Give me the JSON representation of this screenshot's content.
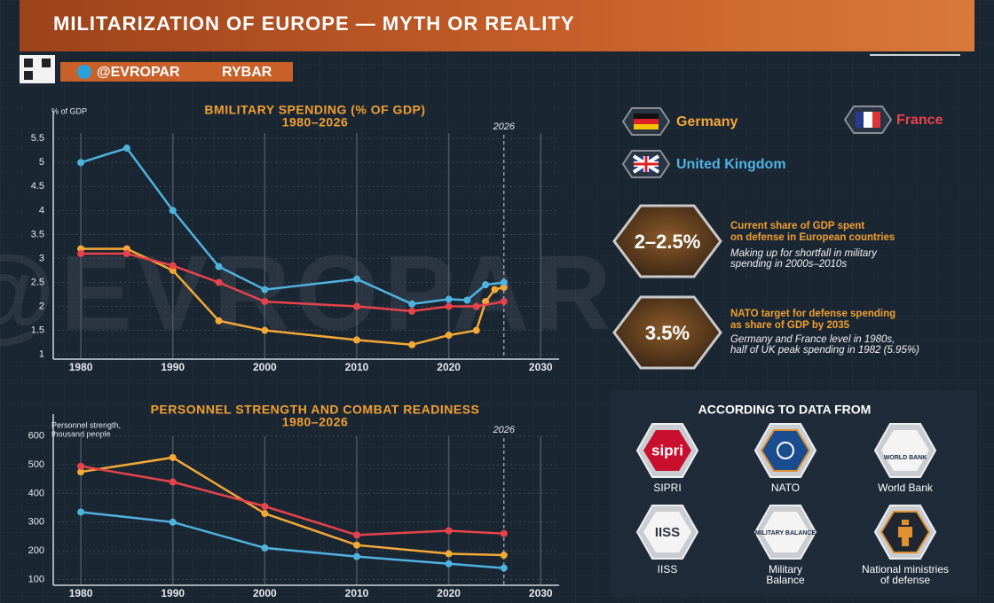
{
  "header": {
    "title": "MILITARIZATION OF EUROPE — MYTH OR REALITY",
    "channel": "@EVROPAR",
    "brand": "RYBAR"
  },
  "watermark": "@EVROPAR",
  "chart_data": [
    {
      "type": "line",
      "title": "BMILITARY SPENDING (% OF GDP)",
      "subtitle": "1980–2026",
      "y_label": [
        "% of GDP"
      ],
      "marker": 2026,
      "xlim": [
        1977,
        2032
      ],
      "xticks": [
        1980,
        1990,
        2000,
        2010,
        2020,
        2030
      ],
      "ylim": [
        0.9,
        5.8
      ],
      "yticks": [
        1,
        1.5,
        2,
        2.5,
        3,
        3.5,
        4,
        4.5,
        5,
        5.5
      ],
      "grid": true,
      "series": [
        {
          "name": "Germany",
          "color": "#f4a836",
          "x": [
            1980,
            1985,
            1990,
            1995,
            2000,
            2010,
            2016,
            2020,
            2023,
            2024,
            2025,
            2026
          ],
          "values": [
            3.2,
            3.2,
            2.75,
            1.7,
            1.5,
            1.3,
            1.2,
            1.4,
            1.5,
            2.1,
            2.35,
            2.4
          ]
        },
        {
          "name": "France",
          "color": "#e8434a",
          "x": [
            1980,
            1985,
            1990,
            1995,
            2000,
            2010,
            2016,
            2020,
            2023,
            2026
          ],
          "values": [
            3.1,
            3.1,
            2.85,
            2.5,
            2.1,
            2.0,
            1.9,
            2.0,
            2.0,
            2.1
          ]
        },
        {
          "name": "United Kingdom",
          "color": "#4fb3e0",
          "x": [
            1980,
            1985,
            1990,
            1995,
            2000,
            2010,
            2016,
            2020,
            2022,
            2024,
            2026
          ],
          "values": [
            5.0,
            5.3,
            4.0,
            2.83,
            2.35,
            2.57,
            2.05,
            2.15,
            2.13,
            2.45,
            2.5
          ]
        }
      ]
    },
    {
      "type": "line",
      "title": "PERSONNEL STRENGTH AND COMBAT READINESS",
      "subtitle": "1980–2026",
      "y_label": [
        "Personnel strength,",
        "thousand people"
      ],
      "marker": 2026,
      "xlim": [
        1977,
        2032
      ],
      "xticks": [
        1980,
        1990,
        2000,
        2010,
        2020,
        2030
      ],
      "ylim": [
        80,
        630
      ],
      "yticks": [
        100,
        200,
        300,
        400,
        500,
        600
      ],
      "grid": true,
      "series": [
        {
          "color": "#f4a836",
          "x": [
            1980,
            1990,
            2000,
            2010,
            2020,
            2026
          ],
          "values": [
            475,
            525,
            330,
            220,
            190,
            185
          ]
        },
        {
          "color": "#e8434a",
          "x": [
            1980,
            1990,
            2000,
            2010,
            2020,
            2026
          ],
          "values": [
            495,
            440,
            355,
            255,
            270,
            260
          ]
        },
        {
          "color": "#4fb3e0",
          "x": [
            1980,
            1990,
            2000,
            2010,
            2020,
            2026
          ],
          "values": [
            335,
            300,
            210,
            180,
            155,
            140
          ]
        }
      ]
    }
  ],
  "stats": [
    {
      "value": "2–2.5%",
      "heading": [
        "Current share of GDP spent",
        "on defense in European countries"
      ],
      "note": [
        "Making up for shortfall in military",
        "spending in 2000s–2010s"
      ]
    },
    {
      "value": "3.5%",
      "heading": [
        "NATO target for defense spending",
        "as share of GDP by 2035"
      ],
      "note": [
        "Germany and France level in 1980s,",
        "half of UK peak spending in 1982 (5.95%)"
      ]
    }
  ],
  "sources": {
    "title": "ACCORDING TO DATA FROM",
    "items": [
      {
        "logo": "sipri",
        "label": [
          "SIPRI"
        ]
      },
      {
        "logo": "",
        "label": [
          "NATO"
        ]
      },
      {
        "logo": "WORLD BANK",
        "label": [
          "World Bank"
        ]
      },
      {
        "logo": "IISS",
        "label": [
          "IISS"
        ]
      },
      {
        "logo": "MILITARY BALANCE",
        "label": [
          "Military",
          "Balance"
        ]
      },
      {
        "logo": "",
        "label": [
          "National ministries",
          "of defense"
        ]
      }
    ]
  }
}
